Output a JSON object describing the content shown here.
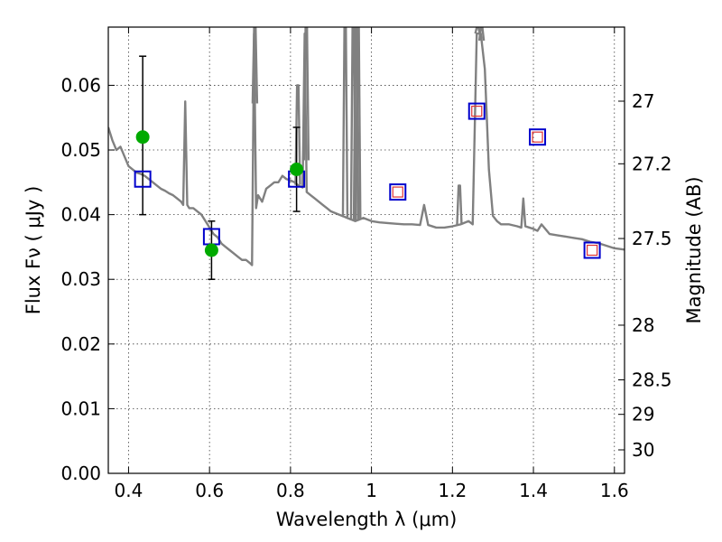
{
  "chart_data": {
    "type": "scatter",
    "title": "",
    "xlabel": "Wavelength  λ (μm)",
    "ylabel": "Flux  Fν  ( μJy )",
    "y2label": "Magnitude (AB)",
    "xlim": [
      0.35,
      1.625
    ],
    "ylim": [
      0.0,
      0.069
    ],
    "grid": true,
    "x_ticks": [
      {
        "value": 0.4,
        "label": "0.4"
      },
      {
        "value": 0.6,
        "label": "0.6"
      },
      {
        "value": 0.8,
        "label": "0.8"
      },
      {
        "value": 1.0,
        "label": "1"
      },
      {
        "value": 1.2,
        "label": "1.2"
      },
      {
        "value": 1.4,
        "label": "1.4"
      },
      {
        "value": 1.6,
        "label": "1.6"
      }
    ],
    "y_ticks": [
      {
        "value": 0.0,
        "label": "0.00"
      },
      {
        "value": 0.01,
        "label": "0.01"
      },
      {
        "value": 0.02,
        "label": "0.02"
      },
      {
        "value": 0.03,
        "label": "0.03"
      },
      {
        "value": 0.04,
        "label": "0.04"
      },
      {
        "value": 0.05,
        "label": "0.05"
      },
      {
        "value": 0.06,
        "label": "0.06"
      }
    ],
    "y2_ticks": [
      {
        "value": 27.0,
        "label": "27"
      },
      {
        "value": 27.2,
        "label": "27.2"
      },
      {
        "value": 27.5,
        "label": "27.5"
      },
      {
        "value": 28.0,
        "label": "28"
      },
      {
        "value": 28.5,
        "label": "28.5"
      },
      {
        "value": 29.0,
        "label": "29"
      },
      {
        "value": 30.0,
        "label": "30"
      }
    ],
    "colors": {
      "spectrum": "#808080",
      "observed": "#00aa00",
      "model_outer": "#0000cc",
      "model_inner": "#dd3333",
      "errorbar": "#000000"
    },
    "series": [
      {
        "kind": "spectrum",
        "x": [
          0.35,
          0.355,
          0.36,
          0.37,
          0.38,
          0.39,
          0.4,
          0.41,
          0.42,
          0.43,
          0.44,
          0.45,
          0.46,
          0.47,
          0.48,
          0.49,
          0.5,
          0.51,
          0.52,
          0.53,
          0.535,
          0.54,
          0.545,
          0.55,
          0.56,
          0.57,
          0.58,
          0.59,
          0.6,
          0.61,
          0.62,
          0.63,
          0.64,
          0.65,
          0.66,
          0.67,
          0.68,
          0.69,
          0.7,
          0.705,
          0.71,
          0.715,
          0.72,
          0.73,
          0.74,
          0.75,
          0.76,
          0.77,
          0.78,
          0.79,
          0.8,
          0.81,
          0.82,
          0.83,
          0.835,
          0.84,
          0.85,
          0.86,
          0.87,
          0.88,
          0.89,
          0.9,
          0.92,
          0.94,
          0.96,
          0.98,
          1.0,
          1.02,
          1.04,
          1.06,
          1.08,
          1.1,
          1.12,
          1.13,
          1.14,
          1.16,
          1.18,
          1.2,
          1.22,
          1.24,
          1.25,
          1.26,
          1.27,
          1.28,
          1.29,
          1.3,
          1.31,
          1.32,
          1.34,
          1.36,
          1.37,
          1.375,
          1.38,
          1.39,
          1.4,
          1.41,
          1.42,
          1.44,
          1.46,
          1.48,
          1.5,
          1.52,
          1.54,
          1.56,
          1.58,
          1.6,
          1.625
        ],
        "y": [
          0.0535,
          0.0525,
          0.0515,
          0.05,
          0.0505,
          0.049,
          0.0475,
          0.047,
          0.0465,
          0.0463,
          0.046,
          0.0455,
          0.045,
          0.0445,
          0.044,
          0.0437,
          0.0433,
          0.043,
          0.0425,
          0.042,
          0.0415,
          0.0575,
          0.0415,
          0.041,
          0.041,
          0.0405,
          0.04,
          0.039,
          0.038,
          0.037,
          0.0365,
          0.0355,
          0.035,
          0.0345,
          0.034,
          0.0335,
          0.033,
          0.033,
          0.0325,
          0.0322,
          0.068,
          0.041,
          0.043,
          0.042,
          0.044,
          0.0445,
          0.045,
          0.045,
          0.046,
          0.0455,
          0.0453,
          0.045,
          0.0445,
          0.0442,
          0.068,
          0.0435,
          0.043,
          0.0425,
          0.042,
          0.0415,
          0.041,
          0.0405,
          0.04,
          0.0395,
          0.039,
          0.0395,
          0.039,
          0.0388,
          0.0387,
          0.0386,
          0.0385,
          0.0385,
          0.0384,
          0.0415,
          0.0384,
          0.038,
          0.038,
          0.0382,
          0.0385,
          0.039,
          0.0385,
          0.068,
          0.068,
          0.0625,
          0.047,
          0.0398,
          0.039,
          0.0385,
          0.0385,
          0.0382,
          0.038,
          0.0425,
          0.0382,
          0.038,
          0.0378,
          0.0375,
          0.0385,
          0.037,
          0.0368,
          0.0366,
          0.0364,
          0.0362,
          0.0358,
          0.0356,
          0.0352,
          0.0348,
          0.0346
        ],
        "lines": [
          {
            "x": 0.712,
            "peak": 0.069
          },
          {
            "x": 0.818,
            "peak": 0.06
          },
          {
            "x": 0.839,
            "peak": 0.069
          },
          {
            "x": 0.935,
            "peak": 0.069
          },
          {
            "x": 0.955,
            "peak": 0.069
          },
          {
            "x": 0.962,
            "peak": 0.069
          },
          {
            "x": 0.967,
            "peak": 0.069
          },
          {
            "x": 1.217,
            "peak": 0.0445
          },
          {
            "x": 1.262,
            "peak": 0.069
          },
          {
            "x": 1.272,
            "peak": 0.069
          }
        ]
      },
      {
        "kind": "observed",
        "x": [
          0.435,
          0.605,
          0.815
        ],
        "y": [
          0.052,
          0.0345,
          0.047
        ],
        "yerr_low": [
          0.04,
          0.03,
          0.0405
        ],
        "yerr_high": [
          0.0645,
          0.039,
          0.0535
        ]
      },
      {
        "kind": "model",
        "x": [
          0.435,
          0.605,
          0.815,
          1.065,
          1.26,
          1.41,
          1.545
        ],
        "y": [
          0.0455,
          0.0366,
          0.0455,
          0.0435,
          0.056,
          0.052,
          0.0345
        ],
        "filled_inner": [
          false,
          false,
          false,
          true,
          true,
          true,
          true
        ]
      }
    ]
  }
}
